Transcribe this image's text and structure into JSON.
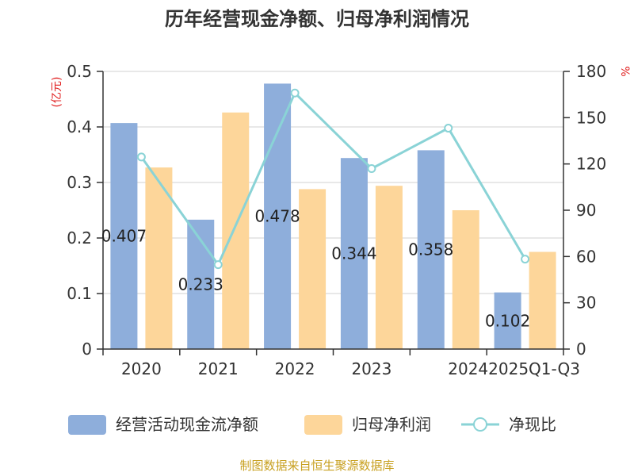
{
  "chart_data": {
    "type": "bar",
    "title": "历年经营现金净额、归母净利润情况",
    "categories": [
      "2020",
      "2021",
      "2022",
      "2023",
      "2024",
      "2025Q1-Q3"
    ],
    "series": [
      {
        "name": "经营活动现金流净额",
        "type": "bar",
        "axis": "left",
        "color": "#8eaedb",
        "values": [
          0.407,
          0.233,
          0.478,
          0.344,
          0.358,
          0.102
        ],
        "labels": [
          "0.407",
          "0.233",
          "0.478",
          "0.344",
          "0.358",
          "0.102"
        ]
      },
      {
        "name": "归母净利润",
        "type": "bar",
        "axis": "left",
        "color": "#fdd69a",
        "values": [
          0.327,
          0.426,
          0.288,
          0.294,
          0.25,
          0.175
        ]
      },
      {
        "name": "净现比",
        "type": "line",
        "axis": "right",
        "color": "#8ad3d6",
        "values": [
          124.5,
          54.7,
          166.0,
          117.0,
          143.2,
          58.3
        ]
      }
    ],
    "yleft": {
      "label": "(亿元)",
      "ylim": [
        0,
        0.5
      ],
      "ticks": [
        "0",
        "0.1",
        "0.2",
        "0.3",
        "0.4",
        "0.5"
      ]
    },
    "yright": {
      "label": "%",
      "ylim": [
        0,
        180
      ],
      "ticks": [
        "0",
        "30",
        "60",
        "90",
        "120",
        "150",
        "180"
      ]
    },
    "grid": true,
    "legend": "bottom"
  },
  "footer": {
    "source": "制图数据来自恒生聚源数据库"
  }
}
